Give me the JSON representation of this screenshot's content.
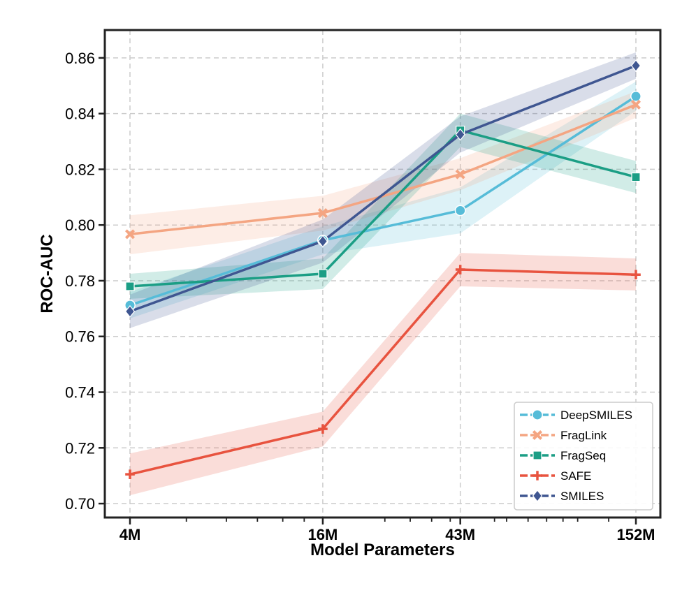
{
  "chart_data": {
    "type": "line",
    "title": "",
    "xlabel": "Model Parameters",
    "ylabel": "ROC-AUC",
    "x_scale": "log",
    "x_values": [
      4,
      16,
      43,
      152
    ],
    "categories": [
      "4M",
      "16M",
      "43M",
      "152M"
    ],
    "ylim": [
      0.695,
      0.87
    ],
    "yticks": [
      0.7,
      0.72,
      0.74,
      0.76,
      0.78,
      0.8,
      0.82,
      0.84,
      0.86
    ],
    "ytick_labels": [
      "0.70",
      "0.72",
      "0.74",
      "0.76",
      "0.78",
      "0.80",
      "0.82",
      "0.84",
      "0.86"
    ],
    "minor_xticks": [
      6,
      8,
      10,
      12,
      14,
      25,
      30,
      35,
      40,
      55,
      60,
      70,
      80,
      90,
      100,
      125
    ],
    "grid": true,
    "legend_position": "bottom-right",
    "series": [
      {
        "name": "DeepSMILES",
        "color": "#56bcd8",
        "marker": "circle",
        "values": [
          0.7712,
          0.7945,
          0.8052,
          0.8462
        ],
        "lower": [
          0.7665,
          0.7895,
          0.797,
          0.841
        ],
        "upper": [
          0.776,
          0.7995,
          0.8135,
          0.8515
        ]
      },
      {
        "name": "FragLink",
        "color": "#f4a582",
        "marker": "x",
        "values": [
          0.7967,
          0.8043,
          0.8182,
          0.8432
        ],
        "lower": [
          0.7895,
          0.798,
          0.8125,
          0.8385
        ],
        "upper": [
          0.8035,
          0.8105,
          0.824,
          0.848
        ]
      },
      {
        "name": "FragSeq",
        "color": "#1b9e85",
        "marker": "square",
        "values": [
          0.778,
          0.7825,
          0.834,
          0.8172
        ],
        "lower": [
          0.7735,
          0.777,
          0.828,
          0.8115
        ],
        "upper": [
          0.7825,
          0.788,
          0.84,
          0.823
        ]
      },
      {
        "name": "SAFE",
        "color": "#e8533f",
        "marker": "plus",
        "values": [
          0.7105,
          0.7268,
          0.784,
          0.7822
        ],
        "lower": [
          0.703,
          0.7205,
          0.778,
          0.7765
        ],
        "upper": [
          0.718,
          0.733,
          0.79,
          0.788
        ]
      },
      {
        "name": "SMILES",
        "color": "#3f5691",
        "marker": "diamond",
        "values": [
          0.769,
          0.7942,
          0.8325,
          0.8572
        ],
        "lower": [
          0.763,
          0.7865,
          0.826,
          0.8525
        ],
        "upper": [
          0.775,
          0.802,
          0.839,
          0.862
        ]
      }
    ]
  }
}
